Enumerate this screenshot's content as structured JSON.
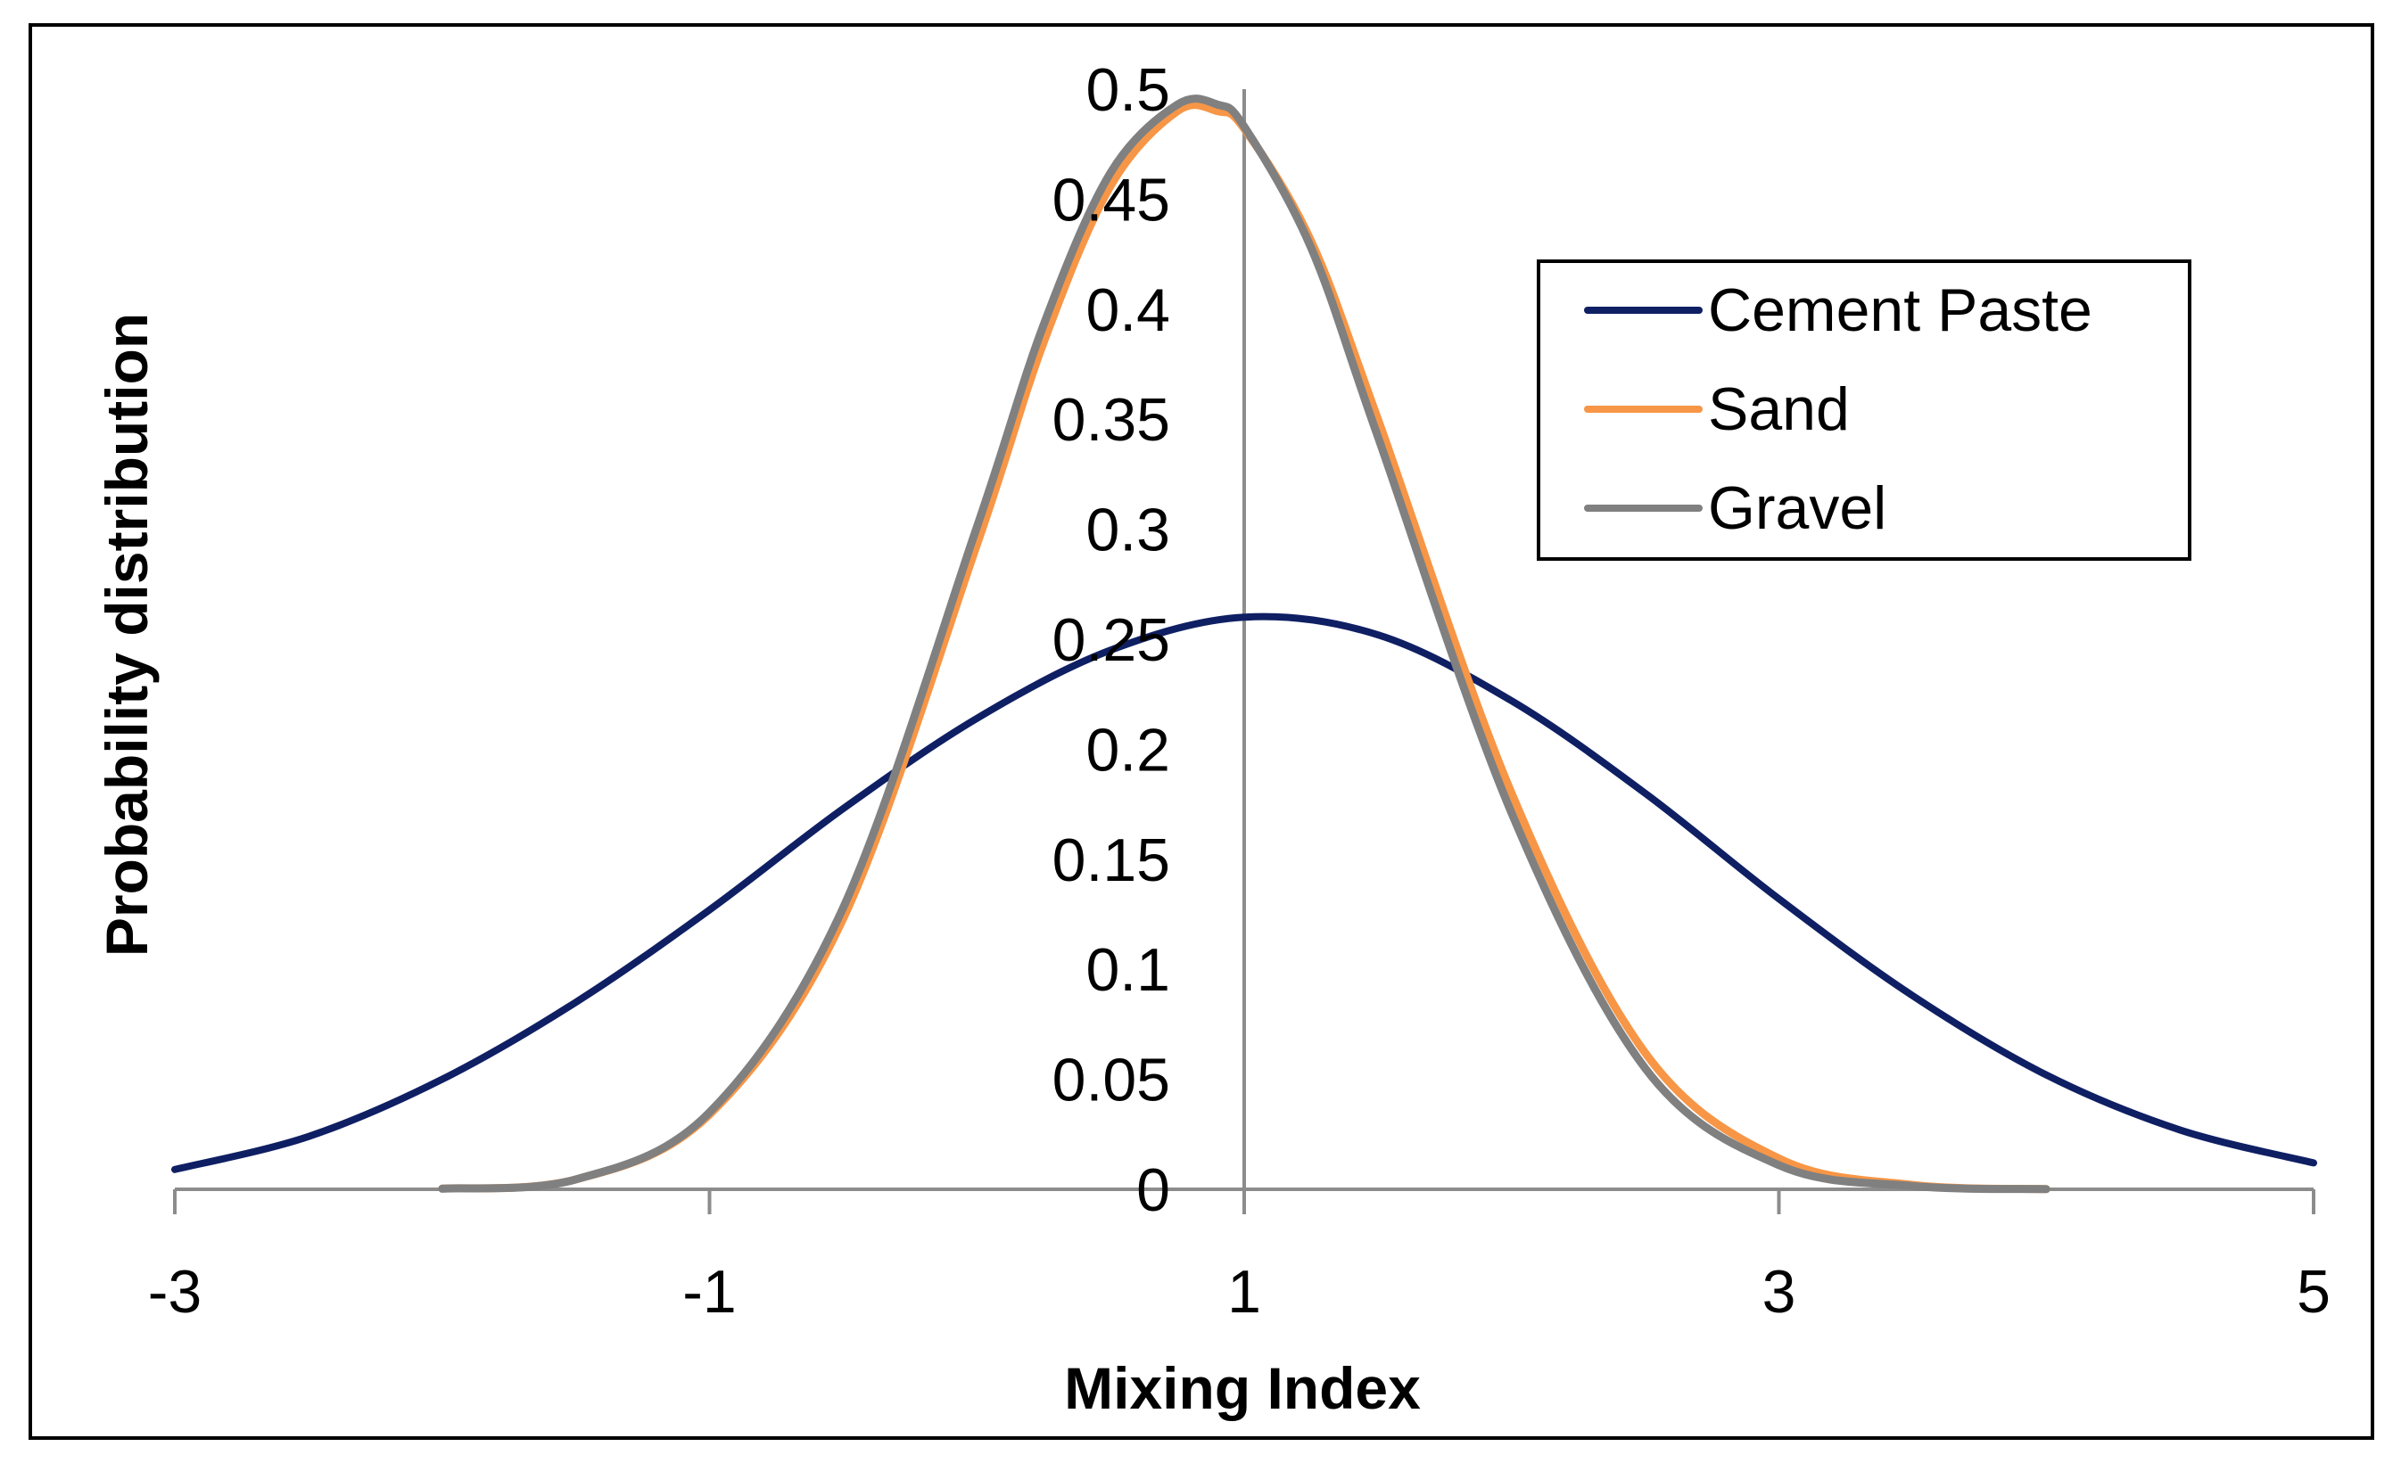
{
  "chart_data": {
    "type": "line",
    "title": "",
    "xlabel": "Mixing Index",
    "ylabel": "Probability distribution",
    "xlim": [
      -3,
      5
    ],
    "ylim": [
      0,
      0.5
    ],
    "x_ticks": [
      -3,
      -1,
      1,
      3,
      5
    ],
    "x_tick_labels": [
      "-3",
      "-1",
      "1",
      "3",
      "5"
    ],
    "y_ticks": [
      0,
      0.05,
      0.1,
      0.15,
      0.2,
      0.25,
      0.3,
      0.35,
      0.4,
      0.45,
      0.5
    ],
    "y_tick_labels": [
      "0",
      "0.05",
      "0.1",
      "0.15",
      "0.2",
      "0.25",
      "0.3",
      "0.35",
      "0.4",
      "0.45",
      "0.5"
    ],
    "grid": false,
    "legend_position": "top-right",
    "series": [
      {
        "name": "Cement Paste",
        "color": "#0f1f63",
        "x": [
          -3.0,
          -2.5,
          -2.0,
          -1.5,
          -1.0,
          -0.5,
          0.0,
          0.5,
          1.0,
          1.5,
          2.0,
          2.5,
          3.0,
          3.5,
          4.0,
          4.5,
          5.0
        ],
        "values": [
          0.009,
          0.024,
          0.05,
          0.085,
          0.127,
          0.173,
          0.214,
          0.245,
          0.26,
          0.252,
          0.222,
          0.18,
          0.132,
          0.088,
          0.052,
          0.027,
          0.012
        ]
      },
      {
        "name": "Sand",
        "color": "#f79646",
        "x": [
          -2.0,
          -1.5,
          -1.0,
          -0.5,
          0.0,
          0.25,
          0.5,
          0.75,
          0.9,
          1.0,
          1.25,
          1.5,
          2.0,
          2.5,
          3.0,
          3.5,
          4.0
        ],
        "values": [
          0.0003,
          0.0045,
          0.034,
          0.123,
          0.293,
          0.385,
          0.456,
          0.49,
          0.49,
          0.482,
          0.431,
          0.35,
          0.18,
          0.062,
          0.014,
          0.002,
          0.0001
        ]
      },
      {
        "name": "Gravel",
        "color": "#808080",
        "x": [
          -2.0,
          -1.5,
          -1.0,
          -0.5,
          0.0,
          0.25,
          0.5,
          0.75,
          0.9,
          1.0,
          1.25,
          1.5,
          2.0,
          2.5,
          3.0,
          3.5,
          4.0
        ],
        "values": [
          0.0003,
          0.0045,
          0.035,
          0.128,
          0.301,
          0.393,
          0.462,
          0.493,
          0.493,
          0.483,
          0.428,
          0.342,
          0.171,
          0.055,
          0.011,
          0.0015,
          0.0001
        ]
      }
    ]
  }
}
